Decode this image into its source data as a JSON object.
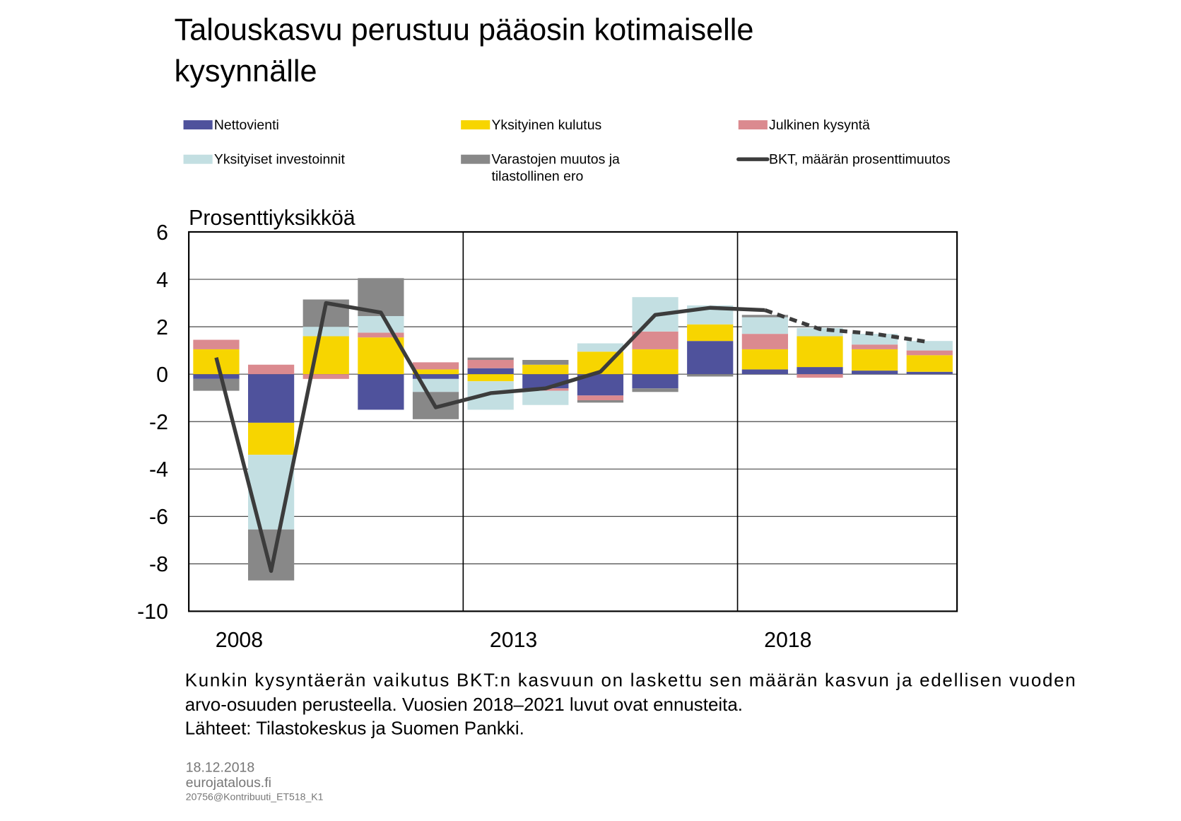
{
  "chart_data": {
    "type": "stacked_bar_line",
    "title": [
      "Talouskasvu perustuu pääosin kotimaiselle",
      "kysynnälle"
    ],
    "y_axis_label": "Prosenttiyksikköä",
    "categories": [
      "2008",
      null,
      null,
      null,
      null,
      "2013",
      null,
      null,
      null,
      null,
      "2018",
      null,
      null,
      null
    ],
    "ylim": [
      -10,
      6
    ],
    "yticks": [
      -10,
      -8,
      -6,
      -4,
      -2,
      0,
      2,
      4,
      6
    ],
    "grid": true,
    "series": [
      {
        "name": "Nettovienti",
        "color": "#4f529c",
        "values": [
          -0.2,
          -2.05,
          0.0,
          -1.5,
          -0.2,
          0.25,
          -0.6,
          -0.9,
          -0.6,
          1.4,
          0.2,
          0.3,
          0.15,
          0.1
        ]
      },
      {
        "name": "Yksityinen kulutus",
        "color": "#f7d500",
        "values": [
          1.05,
          -1.35,
          1.6,
          1.55,
          0.2,
          -0.3,
          0.4,
          0.95,
          1.05,
          0.7,
          0.85,
          1.3,
          0.9,
          0.7
        ]
      },
      {
        "name": "Julkinen kysyntä",
        "color": "#db8a8f",
        "values": [
          0.4,
          0.4,
          -0.2,
          0.2,
          0.3,
          0.35,
          -0.1,
          -0.2,
          0.75,
          0.0,
          0.65,
          -0.15,
          0.2,
          0.2
        ]
      },
      {
        "name": "Yksityiset investoinnit",
        "color": "#c3dfe2",
        "values": [
          0.0,
          -3.15,
          0.4,
          0.7,
          -0.55,
          -1.2,
          -0.6,
          0.35,
          1.45,
          0.8,
          0.7,
          0.35,
          0.45,
          0.4
        ]
      },
      {
        "name": "Varastojen muutos ja\ntilastollinen ero",
        "color": "#888888",
        "values": [
          -0.5,
          -2.15,
          1.15,
          1.6,
          -1.15,
          0.1,
          0.2,
          -0.1,
          -0.15,
          -0.1,
          0.1,
          0.0,
          0.0,
          0.0
        ]
      },
      {
        "name": "BKT, määrän prosenttimuutos",
        "color": "#3c3c3c",
        "kind": "line",
        "dashed_from": "2018",
        "values": [
          0.7,
          -8.3,
          3.0,
          2.6,
          -1.4,
          -0.8,
          -0.6,
          0.1,
          2.5,
          2.8,
          2.7,
          1.9,
          1.7,
          1.35
        ]
      }
    ],
    "notes": [
      "Kunkin kysyntäerän vaikutus BKT:n kasvuun on laskettu sen määrän kasvun ja edellisen vuoden",
      "arvo-osuuden perusteella. Vuosien 2018–2021 luvut ovat ennusteita.",
      "Lähteet: Tilastokeskus ja Suomen Pankki."
    ],
    "footer": [
      "18.12.2018",
      "eurojatalous.fi",
      "20756@Kontribuuti_ET518_K1"
    ]
  }
}
